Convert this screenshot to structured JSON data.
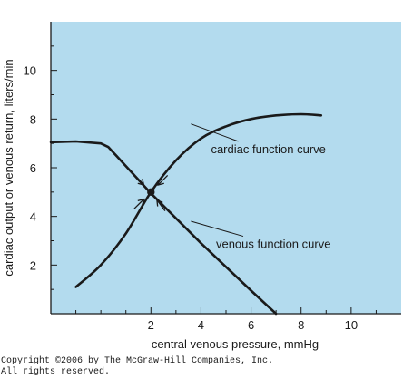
{
  "chart_data": {
    "type": "line",
    "xlabel": "central venous pressure, mmHg",
    "ylabel": "cardiac output or venous return, liters/min",
    "xlim": [
      -2,
      12
    ],
    "ylim": [
      0,
      12
    ],
    "x_ticks": [
      2,
      4,
      6,
      8,
      10
    ],
    "y_ticks": [
      2,
      4,
      6,
      8,
      10
    ],
    "grid": false,
    "background_color": "#b3dbee",
    "line_color": "#1a1a1a",
    "series": [
      {
        "name": "cardiac function curve",
        "x": [
          -1,
          0,
          1,
          2,
          3,
          4,
          5,
          6,
          7,
          8,
          8.8
        ],
        "y": [
          1.1,
          2.0,
          3.3,
          5.0,
          6.3,
          7.2,
          7.7,
          8.0,
          8.15,
          8.2,
          8.15
        ]
      },
      {
        "name": "venous function curve",
        "x": [
          -2,
          -1,
          0,
          0.3,
          2,
          4,
          6,
          7
        ],
        "y": [
          7.05,
          7.08,
          7.0,
          6.85,
          4.95,
          2.9,
          0.95,
          0
        ]
      }
    ],
    "intersection": {
      "x": 2,
      "y": 5.0
    },
    "annotations": [
      {
        "text": "cardiac function curve",
        "x": 4.4,
        "y": 6.6,
        "points_to": [
          3.6,
          7.8
        ]
      },
      {
        "text": "venous function curve",
        "x": 4.6,
        "y": 2.7,
        "points_to": [
          3.6,
          3.8
        ]
      }
    ]
  },
  "copyright": {
    "line1": "Copyright ©2006 by The McGraw-Hill Companies, Inc.",
    "line2": "All rights reserved."
  }
}
